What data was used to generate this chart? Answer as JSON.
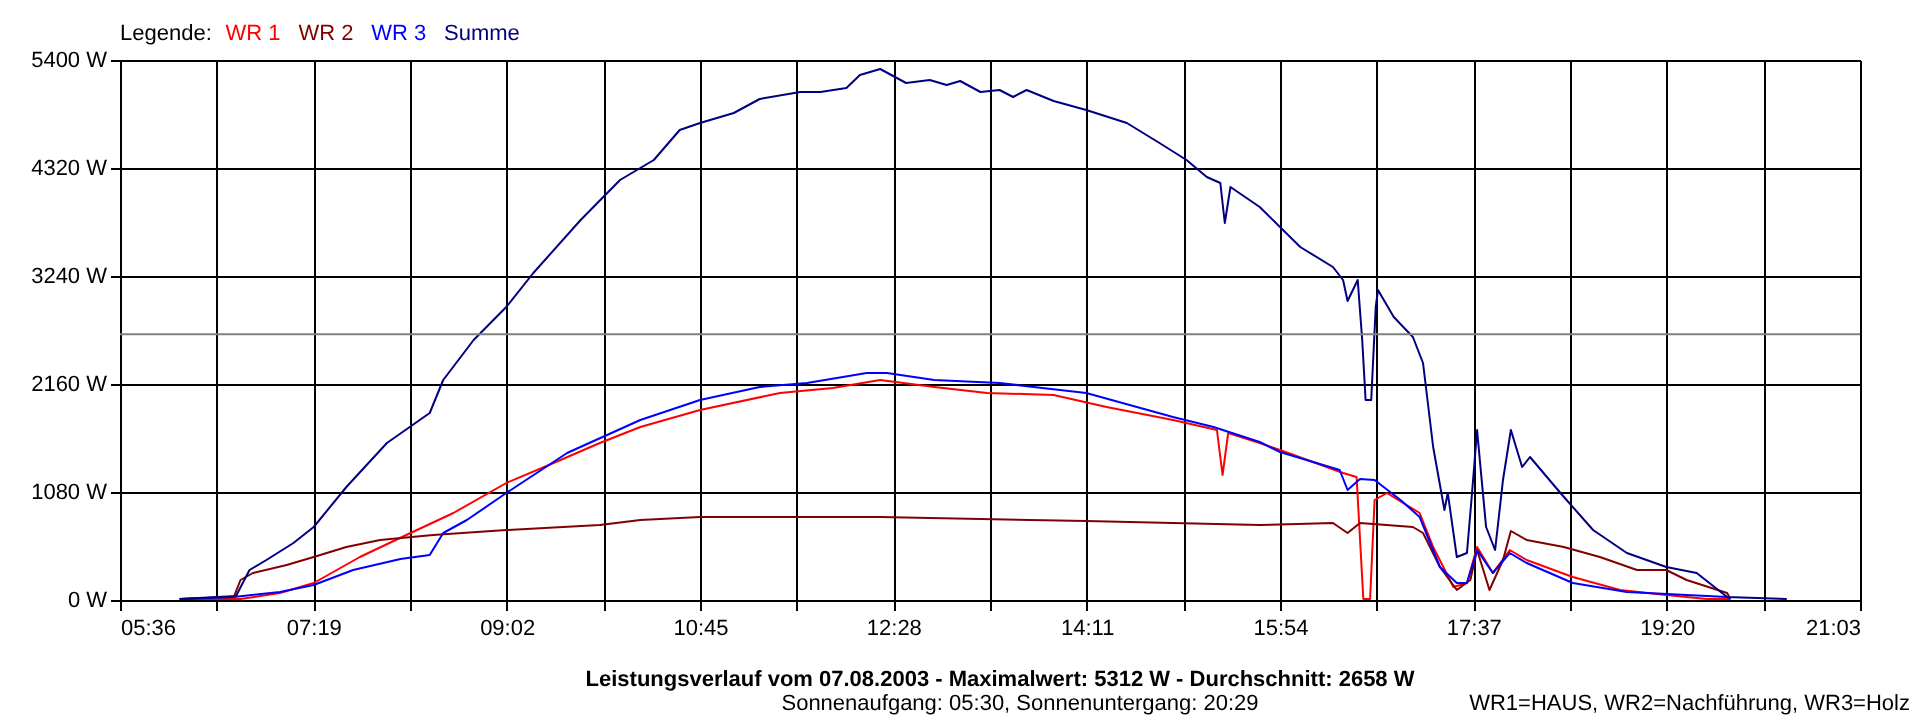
{
  "chart_data": {
    "type": "line",
    "title": "Leistungsverlauf vom 07.08.2003 - Maximalwert: 5312 W - Durchschnitt: 2658 W",
    "subtitle": "Sonnenaufgang: 05:30, Sonnenuntergang: 20:29",
    "legend_title": "Legende:",
    "legend": "top left",
    "grid": true,
    "annotations": [
      "WR1=HAUS, WR2=Nachführung, WR3=Holz"
    ],
    "xlim": [
      5.6,
      21.05
    ],
    "xticks": [
      {
        "value": 5.6,
        "label": "05:36"
      },
      {
        "value": 6.4583,
        "label": null
      },
      {
        "value": 7.3167,
        "label": "07:19"
      },
      {
        "value": 8.175,
        "label": null
      },
      {
        "value": 9.0333,
        "label": "09:02"
      },
      {
        "value": 9.8917,
        "label": null
      },
      {
        "value": 10.75,
        "label": "10:45"
      },
      {
        "value": 11.6083,
        "label": null
      },
      {
        "value": 12.4667,
        "label": "12:28"
      },
      {
        "value": 13.325,
        "label": null
      },
      {
        "value": 14.1833,
        "label": "14:11"
      },
      {
        "value": 15.0417,
        "label": null
      },
      {
        "value": 15.9,
        "label": "15:54"
      },
      {
        "value": 16.7583,
        "label": null
      },
      {
        "value": 17.6167,
        "label": "17:37"
      },
      {
        "value": 18.475,
        "label": null
      },
      {
        "value": 19.3333,
        "label": "19:20"
      },
      {
        "value": 20.1917,
        "label": null
      },
      {
        "value": 21.05,
        "label": "21:03"
      }
    ],
    "ylim": [
      0,
      5400
    ],
    "yticks": [
      {
        "value": 0,
        "label": "0 W"
      },
      {
        "value": 1080,
        "label": "1080 W"
      },
      {
        "value": 2160,
        "label": "2160 W"
      },
      {
        "value": 3240,
        "label": "3240 W"
      },
      {
        "value": 4320,
        "label": "4320 W"
      },
      {
        "value": 5400,
        "label": "5400 W"
      }
    ],
    "ref_lines": [
      {
        "axis": "y",
        "value": 2658,
        "color": "#808080"
      }
    ],
    "series": [
      {
        "name": "WR 1",
        "color": "#ff0000",
        "x": [
          6.13,
          6.67,
          7.02,
          7.32,
          7.73,
          8.18,
          8.56,
          9.03,
          9.45,
          9.86,
          10.22,
          10.75,
          11.46,
          11.93,
          12.35,
          12.83,
          13.3,
          13.89,
          14.36,
          14.95,
          15.34,
          15.39,
          15.44,
          15.72,
          15.9,
          16.46,
          16.58,
          16.64,
          16.7,
          16.74,
          16.85,
          17.14,
          17.26,
          17.44,
          17.56,
          17.65,
          17.79,
          17.94,
          18.09,
          18.5,
          18.92,
          19.33,
          19.69,
          19.9
        ],
        "values": [
          10,
          10,
          70,
          170,
          430,
          670,
          870,
          1170,
          1370,
          1570,
          1730,
          1900,
          2070,
          2120,
          2200,
          2130,
          2070,
          2050,
          1930,
          1800,
          1700,
          1250,
          1670,
          1570,
          1500,
          1270,
          1230,
          10,
          10,
          1000,
          1070,
          870,
          530,
          130,
          170,
          530,
          270,
          500,
          400,
          230,
          100,
          50,
          10,
          10
        ]
      },
      {
        "name": "WR 2",
        "color": "#800000",
        "x": [
          6.13,
          6.61,
          6.67,
          6.78,
          7.08,
          7.32,
          7.61,
          7.91,
          8.38,
          9.03,
          9.86,
          10.22,
          10.75,
          12.35,
          14.18,
          15.72,
          16.37,
          16.5,
          16.61,
          17.08,
          17.17,
          17.32,
          17.47,
          17.59,
          17.65,
          17.76,
          17.88,
          17.95,
          18.09,
          18.42,
          18.74,
          19.07,
          19.33,
          19.51,
          19.87,
          19.9
        ],
        "values": [
          10,
          30,
          200,
          270,
          350,
          430,
          530,
          600,
          650,
          700,
          750,
          800,
          830,
          830,
          790,
          750,
          770,
          670,
          770,
          730,
          670,
          330,
          100,
          200,
          500,
          100,
          400,
          690,
          600,
          530,
          430,
          300,
          300,
          200,
          70,
          10
        ]
      },
      {
        "name": "WR 3",
        "color": "#0000ff",
        "x": [
          6.13,
          6.61,
          7.02,
          7.32,
          7.67,
          8.09,
          8.35,
          8.47,
          8.68,
          9.03,
          9.57,
          10.22,
          10.75,
          11.28,
          11.7,
          12.23,
          12.41,
          12.83,
          13.41,
          14.18,
          14.95,
          15.31,
          15.72,
          15.9,
          16.43,
          16.5,
          16.61,
          16.74,
          16.97,
          17.14,
          17.32,
          17.47,
          17.56,
          17.65,
          17.79,
          17.94,
          18.09,
          18.5,
          18.98,
          19.87,
          19.9
        ],
        "values": [
          10,
          30,
          80,
          150,
          300,
          410,
          450,
          670,
          800,
          1070,
          1470,
          1800,
          2000,
          2130,
          2170,
          2270,
          2270,
          2200,
          2170,
          2070,
          1830,
          1730,
          1580,
          1480,
          1300,
          1100,
          1210,
          1200,
          1000,
          830,
          330,
          170,
          170,
          500,
          270,
          470,
          370,
          170,
          80,
          30,
          10
        ]
      },
      {
        "name": "Summe",
        "color": "#000080",
        "x": [
          6.13,
          6.63,
          6.75,
          6.9,
          7.14,
          7.32,
          7.61,
          7.97,
          8.35,
          8.47,
          8.74,
          9.03,
          9.27,
          9.69,
          10.04,
          10.34,
          10.57,
          10.75,
          11.05,
          11.28,
          11.64,
          11.82,
          12.05,
          12.17,
          12.35,
          12.58,
          12.79,
          12.94,
          13.06,
          13.24,
          13.41,
          13.53,
          13.65,
          13.89,
          14.18,
          14.54,
          14.83,
          15.07,
          15.25,
          15.37,
          15.41,
          15.46,
          15.72,
          15.9,
          16.08,
          16.37,
          16.46,
          16.5,
          16.59,
          16.63,
          16.66,
          16.71,
          16.75,
          16.77,
          16.91,
          17.08,
          17.17,
          17.26,
          17.36,
          17.39,
          17.47,
          17.56,
          17.6,
          17.65,
          17.68,
          17.73,
          17.81,
          17.88,
          17.95,
          18.05,
          18.12,
          18.39,
          18.68,
          18.98,
          19.33,
          19.6,
          19.87,
          20.4
        ],
        "values": [
          10,
          40,
          300,
          400,
          570,
          730,
          1130,
          1570,
          1870,
          2200,
          2600,
          2930,
          3270,
          3800,
          4200,
          4400,
          4700,
          4770,
          4870,
          5010,
          5080,
          5080,
          5120,
          5250,
          5310,
          5170,
          5200,
          5150,
          5190,
          5080,
          5100,
          5030,
          5100,
          4990,
          4900,
          4770,
          4570,
          4400,
          4230,
          4170,
          3770,
          4130,
          3930,
          3730,
          3530,
          3330,
          3200,
          2990,
          3200,
          2600,
          2000,
          2000,
          2930,
          3100,
          2830,
          2630,
          2370,
          1530,
          900,
          1070,
          430,
          470,
          1000,
          1700,
          1330,
          730,
          500,
          1200,
          1700,
          1330,
          1430,
          1070,
          700,
          470,
          330,
          270,
          30,
          10
        ]
      }
    ]
  }
}
